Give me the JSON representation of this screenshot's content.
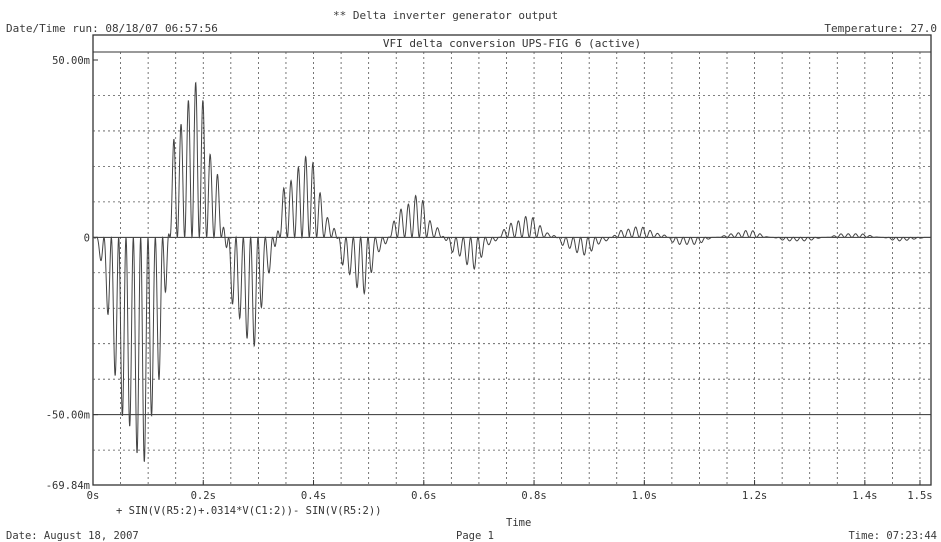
{
  "header": {
    "title": "** Delta inverter generator output",
    "run_datetime": "Date/Time run: 08/18/07 06:57:56",
    "temperature": "Temperature: 27.0"
  },
  "footer": {
    "date": "Date: August 18, 2007",
    "page": "Page 1",
    "time": "Time: 07:23:44"
  },
  "colors": {
    "trace": "#444444",
    "grid": "#555555",
    "frame": "#333333",
    "background": "#ffffff"
  },
  "chart_data": {
    "type": "line",
    "title": "VFI delta conversion UPS-FIG 6 (active)",
    "xlabel": "Time",
    "trace_label": "+ SIN(V(R5:2)+.0314*V(C1:2))- SIN(V(R5:2))",
    "xlim": [
      0,
      1.52
    ],
    "ylim": [
      -0.06984,
      0.05
    ],
    "x_ticks": [
      {
        "value": 0,
        "label": "0s"
      },
      {
        "value": 0.2,
        "label": "0.2s"
      },
      {
        "value": 0.4,
        "label": "0.4s"
      },
      {
        "value": 0.6,
        "label": "0.6s"
      },
      {
        "value": 0.8,
        "label": "0.8s"
      },
      {
        "value": 1.0,
        "label": "1.0s"
      },
      {
        "value": 1.2,
        "label": "1.2s"
      },
      {
        "value": 1.4,
        "label": "1.4s"
      },
      {
        "value": 1.5,
        "label": "1.5s"
      }
    ],
    "y_ticks": [
      {
        "value": 0.05,
        "label": "50.00m"
      },
      {
        "value": 0,
        "label": "0"
      },
      {
        "value": -0.05,
        "label": "-50.00m"
      },
      {
        "value": -0.06984,
        "label": "-69.84m"
      }
    ],
    "grid": true,
    "envelope_peaks": [
      {
        "x": 0.0,
        "y": 0.0
      },
      {
        "x": 0.06,
        "y": -0.052
      },
      {
        "x": 0.09,
        "y": -0.064
      },
      {
        "x": 0.12,
        "y": -0.04
      },
      {
        "x": 0.15,
        "y": 0.03
      },
      {
        "x": 0.19,
        "y": 0.044
      },
      {
        "x": 0.22,
        "y": 0.02
      },
      {
        "x": 0.26,
        "y": -0.022
      },
      {
        "x": 0.29,
        "y": -0.031
      },
      {
        "x": 0.32,
        "y": -0.01
      },
      {
        "x": 0.35,
        "y": 0.015
      },
      {
        "x": 0.39,
        "y": 0.023
      },
      {
        "x": 0.43,
        "y": 0.005
      },
      {
        "x": 0.46,
        "y": -0.01
      },
      {
        "x": 0.49,
        "y": -0.016
      },
      {
        "x": 0.52,
        "y": -0.004
      },
      {
        "x": 0.56,
        "y": 0.008
      },
      {
        "x": 0.59,
        "y": 0.012
      },
      {
        "x": 0.62,
        "y": 0.003
      },
      {
        "x": 0.66,
        "y": -0.005
      },
      {
        "x": 0.69,
        "y": -0.009
      },
      {
        "x": 0.72,
        "y": -0.002
      },
      {
        "x": 0.76,
        "y": 0.004
      },
      {
        "x": 0.79,
        "y": 0.006
      },
      {
        "x": 0.83,
        "y": 0.001
      },
      {
        "x": 0.86,
        "y": -0.003
      },
      {
        "x": 0.89,
        "y": -0.005
      },
      {
        "x": 0.93,
        "y": -0.001
      },
      {
        "x": 0.96,
        "y": 0.002
      },
      {
        "x": 0.99,
        "y": 0.003
      },
      {
        "x": 1.03,
        "y": 0.001
      },
      {
        "x": 1.06,
        "y": -0.002
      },
      {
        "x": 1.09,
        "y": -0.002
      },
      {
        "x": 1.13,
        "y": 0.0
      },
      {
        "x": 1.16,
        "y": 0.001
      },
      {
        "x": 1.19,
        "y": 0.002
      },
      {
        "x": 1.23,
        "y": 0.0
      },
      {
        "x": 1.26,
        "y": -0.001
      },
      {
        "x": 1.29,
        "y": -0.001
      },
      {
        "x": 1.33,
        "y": 0.0
      },
      {
        "x": 1.36,
        "y": 0.001
      },
      {
        "x": 1.39,
        "y": 0.001
      },
      {
        "x": 1.43,
        "y": 0.0
      },
      {
        "x": 1.46,
        "y": -0.001
      },
      {
        "x": 1.52,
        "y": 0.0
      }
    ],
    "ripple_period_s": 0.0133
  }
}
